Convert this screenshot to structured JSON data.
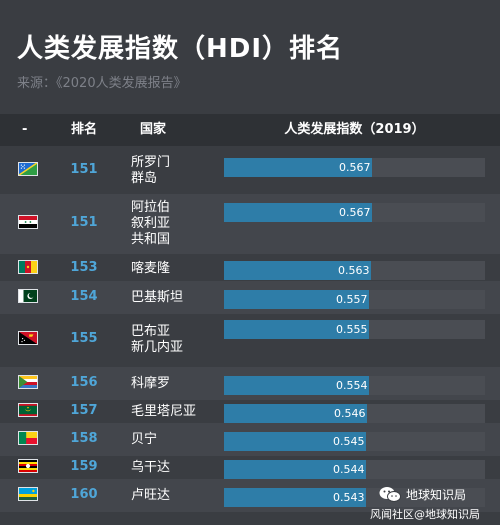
{
  "title": "人类发展指数（HDI）排名",
  "source": "来源：《2020人类发展报告》",
  "watermark": {
    "name": "地球知识局",
    "credit": "风闻社区@地球知识局"
  },
  "colors": {
    "background": "#3a3d42",
    "header": "#2e3135",
    "bar": "#2e7da8",
    "track": "#4a4d53",
    "rank": "#4fa6d8"
  },
  "chart_data": {
    "type": "table",
    "columns": [
      "-",
      "排名",
      "国家",
      "人类发展指数（2019）"
    ],
    "bar_max": 1.0,
    "rows": [
      {
        "flag": "solomon-islands-flag",
        "rank": "151",
        "country": [
          "所罗门",
          "群岛"
        ],
        "value": 0.567,
        "value_label": "0.567"
      },
      {
        "flag": "syria-flag",
        "rank": "151",
        "country": [
          "阿拉伯",
          "叙利亚",
          "共和国"
        ],
        "value": 0.567,
        "value_label": "0.567"
      },
      {
        "flag": "cameroon-flag",
        "rank": "153",
        "country": [
          "喀麦隆"
        ],
        "value": 0.563,
        "value_label": "0.563"
      },
      {
        "flag": "pakistan-flag",
        "rank": "154",
        "country": [
          "巴基斯坦"
        ],
        "value": 0.557,
        "value_label": "0.557"
      },
      {
        "flag": "papua-new-guinea-flag",
        "rank": "155",
        "country": [
          "巴布亚",
          "新几内亚"
        ],
        "value": 0.555,
        "value_label": "0.555"
      },
      {
        "flag": "comoros-flag",
        "rank": "156",
        "country": [
          "科摩罗"
        ],
        "value": 0.554,
        "value_label": "0.554"
      },
      {
        "flag": "mauritania-flag",
        "rank": "157",
        "country": [
          "毛里塔尼亚"
        ],
        "value": 0.546,
        "value_label": "0.546"
      },
      {
        "flag": "benin-flag",
        "rank": "158",
        "country": [
          "贝宁"
        ],
        "value": 0.545,
        "value_label": "0.545"
      },
      {
        "flag": "uganda-flag",
        "rank": "159",
        "country": [
          "乌干达"
        ],
        "value": 0.544,
        "value_label": "0.544"
      },
      {
        "flag": "rwanda-flag",
        "rank": "160",
        "country": [
          "卢旺达"
        ],
        "value": 0.543,
        "value_label": "0.543"
      }
    ]
  }
}
